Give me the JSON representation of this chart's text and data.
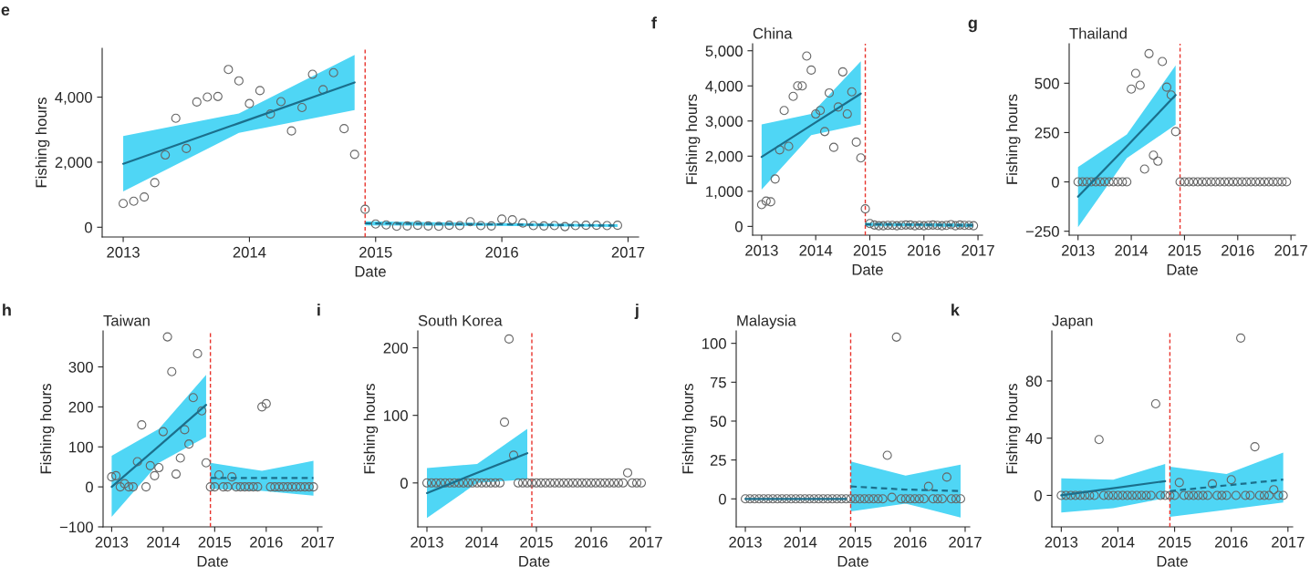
{
  "chart_data": [
    {
      "type": "scatter",
      "annotations": [
        "e"
      ],
      "xlabel": "Date",
      "ylabel": "Fishing hours",
      "x": [
        "2013-01",
        "2013-02",
        "2013-03",
        "2013-04",
        "2013-05",
        "2013-06",
        "2013-07",
        "2013-08",
        "2013-09",
        "2013-10",
        "2013-11",
        "2013-12",
        "2014-01",
        "2014-02",
        "2014-03",
        "2014-04",
        "2014-05",
        "2014-06",
        "2014-07",
        "2014-08",
        "2014-09",
        "2014-10",
        "2014-11",
        "2014-12",
        "2015-01",
        "2015-02",
        "2015-03",
        "2015-04",
        "2015-05",
        "2015-06",
        "2015-07",
        "2015-08",
        "2015-09",
        "2015-10",
        "2015-11",
        "2015-12",
        "2016-01",
        "2016-02",
        "2016-03",
        "2016-04",
        "2016-05",
        "2016-06",
        "2016-07",
        "2016-08",
        "2016-09",
        "2016-10",
        "2016-11",
        "2016-12"
      ],
      "xlim": [
        "2012-11",
        "2017-02"
      ],
      "xticks": [
        "2013",
        "2014",
        "2015",
        "2016",
        "2017"
      ],
      "ylim": [
        -300,
        5500
      ],
      "yticks": [
        0,
        {
          "value": 2000,
          "label": "2,000"
        },
        {
          "value": 4000,
          "label": "4,000"
        }
      ],
      "ref_lines": [
        {
          "axis": "x",
          "value": "2014-12",
          "color": "#e8322b",
          "line_style": "dashed"
        }
      ],
      "series": [
        {
          "marker": "circle",
          "color": "#666666",
          "values": [
            730,
            800,
            930,
            1370,
            2220,
            3350,
            2420,
            3850,
            4000,
            4020,
            4850,
            4500,
            3800,
            4200,
            3480,
            3860,
            2960,
            3680,
            4700,
            4230,
            4750,
            3030,
            2240,
            550,
            100,
            70,
            30,
            40,
            60,
            40,
            30,
            60,
            50,
            170,
            50,
            40,
            250,
            230,
            130,
            50,
            40,
            50,
            20,
            50,
            60,
            60,
            50,
            60
          ]
        },
        {
          "type": "line",
          "color": "#1b6f8c",
          "line_style": "solid",
          "x": [
            "2013-01",
            "2013-12",
            "2014-11"
          ],
          "values": [
            1950,
            3200,
            4450
          ],
          "lower": [
            1100,
            2900,
            3600
          ],
          "upper": [
            2800,
            3500,
            5300
          ]
        },
        {
          "type": "line",
          "color": "#1b6f8c",
          "line_style": "dashed",
          "x": [
            "2014-12",
            "2015-12",
            "2016-12"
          ],
          "values": [
            120,
            90,
            50
          ],
          "lower": [
            60,
            40,
            10
          ],
          "upper": [
            180,
            130,
            90
          ]
        }
      ]
    },
    {
      "type": "scatter",
      "title": "China",
      "annotations": [
        "f"
      ],
      "xlabel": "Date",
      "ylabel": "Fishing hours",
      "x": [
        "2013-01",
        "2013-02",
        "2013-03",
        "2013-04",
        "2013-05",
        "2013-06",
        "2013-07",
        "2013-08",
        "2013-09",
        "2013-10",
        "2013-11",
        "2013-12",
        "2014-01",
        "2014-02",
        "2014-03",
        "2014-04",
        "2014-05",
        "2014-06",
        "2014-07",
        "2014-08",
        "2014-09",
        "2014-10",
        "2014-11",
        "2014-12",
        "2015-01",
        "2015-02",
        "2015-03",
        "2015-04",
        "2015-05",
        "2015-06",
        "2015-07",
        "2015-08",
        "2015-09",
        "2015-10",
        "2015-11",
        "2015-12",
        "2016-01",
        "2016-02",
        "2016-03",
        "2016-04",
        "2016-05",
        "2016-06",
        "2016-07",
        "2016-08",
        "2016-09",
        "2016-10",
        "2016-11",
        "2016-12"
      ],
      "xlim": [
        "2012-11",
        "2017-02"
      ],
      "xticks": [
        "2013",
        "2014",
        "2015",
        "2016",
        "2017"
      ],
      "ylim": [
        -250,
        5200
      ],
      "yticks": [
        0,
        {
          "value": 1000,
          "label": "1,000"
        },
        {
          "value": 2000,
          "label": "2,000"
        },
        {
          "value": 3000,
          "label": "3,000"
        },
        {
          "value": 4000,
          "label": "4,000"
        },
        {
          "value": 5000,
          "label": "5,000"
        }
      ],
      "ref_lines": [
        {
          "axis": "x",
          "value": "2014-12",
          "color": "#e8322b",
          "line_style": "dashed"
        }
      ],
      "series": [
        {
          "marker": "circle",
          "color": "#666666",
          "values": [
            620,
            720,
            700,
            1350,
            2180,
            3300,
            2280,
            3700,
            4000,
            4000,
            4850,
            4450,
            3200,
            3300,
            2700,
            3800,
            2250,
            3400,
            4400,
            3200,
            3830,
            2400,
            1950,
            500,
            80,
            40,
            20,
            20,
            30,
            30,
            20,
            30,
            40,
            40,
            20,
            30,
            20,
            30,
            40,
            30,
            20,
            30,
            50,
            20,
            40,
            30,
            30,
            20
          ]
        },
        {
          "type": "line",
          "color": "#1b6f8c",
          "line_style": "solid",
          "x": [
            "2013-01",
            "2013-12",
            "2014-11"
          ],
          "values": [
            1980,
            2880,
            3780
          ],
          "lower": [
            1050,
            2600,
            2900
          ],
          "upper": [
            2900,
            3200,
            4700
          ]
        },
        {
          "type": "line",
          "color": "#1b6f8c",
          "line_style": "dashed",
          "x": [
            "2014-12",
            "2015-12",
            "2016-12"
          ],
          "values": [
            60,
            50,
            30
          ],
          "lower": [
            0,
            0,
            -20
          ],
          "upper": [
            110,
            90,
            80
          ]
        }
      ]
    },
    {
      "type": "scatter",
      "title": "Thailand",
      "annotations": [
        "g"
      ],
      "xlabel": "Date",
      "ylabel": "Fishing hours",
      "x": [
        "2013-01",
        "2013-02",
        "2013-03",
        "2013-04",
        "2013-05",
        "2013-06",
        "2013-07",
        "2013-08",
        "2013-09",
        "2013-10",
        "2013-11",
        "2013-12",
        "2014-01",
        "2014-02",
        "2014-03",
        "2014-04",
        "2014-05",
        "2014-06",
        "2014-07",
        "2014-08",
        "2014-09",
        "2014-10",
        "2014-11",
        "2014-12",
        "2015-01",
        "2015-02",
        "2015-03",
        "2015-04",
        "2015-05",
        "2015-06",
        "2015-07",
        "2015-08",
        "2015-09",
        "2015-10",
        "2015-11",
        "2015-12",
        "2016-01",
        "2016-02",
        "2016-03",
        "2016-04",
        "2016-05",
        "2016-06",
        "2016-07",
        "2016-08",
        "2016-09",
        "2016-10",
        "2016-11",
        "2016-12"
      ],
      "xlim": [
        "2012-11",
        "2017-02"
      ],
      "xticks": [
        "2013",
        "2014",
        "2015",
        "2016",
        "2017"
      ],
      "ylim": [
        -270,
        700
      ],
      "yticks": [
        {
          "value": -250,
          "label": "−250"
        },
        0,
        250,
        500
      ],
      "ref_lines": [
        {
          "axis": "x",
          "value": "2014-12",
          "color": "#e8322b",
          "line_style": "dashed"
        }
      ],
      "series": [
        {
          "marker": "circle",
          "color": "#666666",
          "values": [
            0,
            0,
            0,
            0,
            0,
            0,
            0,
            0,
            0,
            0,
            0,
            0,
            470,
            550,
            490,
            65,
            650,
            135,
            105,
            610,
            480,
            440,
            255,
            0,
            0,
            0,
            0,
            0,
            0,
            0,
            0,
            0,
            0,
            0,
            0,
            0,
            0,
            0,
            0,
            0,
            0,
            0,
            0,
            0,
            0,
            0,
            0,
            0
          ]
        },
        {
          "type": "line",
          "color": "#1b6f8c",
          "line_style": "solid",
          "x": [
            "2013-01",
            "2013-12",
            "2014-11"
          ],
          "values": [
            -75,
            180,
            440
          ],
          "lower": [
            -230,
            120,
            290
          ],
          "upper": [
            75,
            240,
            590
          ]
        }
      ]
    },
    {
      "type": "scatter",
      "title": "Taiwan",
      "annotations": [
        "h"
      ],
      "xlabel": "Date",
      "ylabel": "Fishing hours",
      "x": [
        "2013-01",
        "2013-02",
        "2013-03",
        "2013-04",
        "2013-05",
        "2013-06",
        "2013-07",
        "2013-08",
        "2013-09",
        "2013-10",
        "2013-11",
        "2013-12",
        "2014-01",
        "2014-02",
        "2014-03",
        "2014-04",
        "2014-05",
        "2014-06",
        "2014-07",
        "2014-08",
        "2014-09",
        "2014-10",
        "2014-11",
        "2014-12",
        "2015-01",
        "2015-02",
        "2015-03",
        "2015-04",
        "2015-05",
        "2015-06",
        "2015-07",
        "2015-08",
        "2015-09",
        "2015-10",
        "2015-11",
        "2015-12",
        "2016-01",
        "2016-02",
        "2016-03",
        "2016-04",
        "2016-05",
        "2016-06",
        "2016-07",
        "2016-08",
        "2016-09",
        "2016-10",
        "2016-11",
        "2016-12"
      ],
      "xlim": [
        "2012-11",
        "2017-02"
      ],
      "xticks": [
        "2013",
        "2014",
        "2015",
        "2016",
        "2017"
      ],
      "ylim": [
        -100,
        390
      ],
      "yticks": [
        {
          "value": -100,
          "label": "−100"
        },
        0,
        100,
        200,
        300
      ],
      "ref_lines": [
        {
          "axis": "x",
          "value": "2014-12",
          "color": "#e8322b",
          "line_style": "dashed"
        }
      ],
      "series": [
        {
          "marker": "circle",
          "color": "#666666",
          "values": [
            25,
            28,
            0,
            8,
            0,
            0,
            63,
            155,
            0,
            53,
            28,
            48,
            138,
            375,
            288,
            32,
            72,
            143,
            107,
            223,
            333,
            190,
            60,
            0,
            0,
            30,
            0,
            0,
            25,
            0,
            0,
            0,
            0,
            0,
            0,
            200,
            208,
            0,
            0,
            0,
            0,
            0,
            0,
            0,
            0,
            0,
            0,
            0
          ]
        },
        {
          "type": "line",
          "color": "#1b6f8c",
          "line_style": "solid",
          "x": [
            "2013-01",
            "2013-12",
            "2014-11"
          ],
          "values": [
            0,
            102,
            205
          ],
          "lower": [
            -75,
            60,
            125
          ],
          "upper": [
            78,
            145,
            280
          ]
        },
        {
          "type": "line",
          "color": "#1b6f8c",
          "line_style": "dashed",
          "x": [
            "2014-12",
            "2015-12",
            "2016-12"
          ],
          "values": [
            22,
            22,
            22
          ],
          "lower": [
            -5,
            -10,
            -22
          ],
          "upper": [
            60,
            40,
            65
          ]
        }
      ]
    },
    {
      "type": "scatter",
      "title": "South Korea",
      "annotations": [
        "i"
      ],
      "xlabel": "Date",
      "ylabel": "Fishing hours",
      "x": [
        "2013-01",
        "2013-02",
        "2013-03",
        "2013-04",
        "2013-05",
        "2013-06",
        "2013-07",
        "2013-08",
        "2013-09",
        "2013-10",
        "2013-11",
        "2013-12",
        "2014-01",
        "2014-02",
        "2014-03",
        "2014-04",
        "2014-05",
        "2014-06",
        "2014-07",
        "2014-08",
        "2014-09",
        "2014-10",
        "2014-11",
        "2014-12",
        "2015-01",
        "2015-02",
        "2015-03",
        "2015-04",
        "2015-05",
        "2015-06",
        "2015-07",
        "2015-08",
        "2015-09",
        "2015-10",
        "2015-11",
        "2015-12",
        "2016-01",
        "2016-02",
        "2016-03",
        "2016-04",
        "2016-05",
        "2016-06",
        "2016-07",
        "2016-08",
        "2016-09",
        "2016-10",
        "2016-11",
        "2016-12"
      ],
      "xlim": [
        "2012-11",
        "2017-02"
      ],
      "xticks": [
        "2013",
        "2014",
        "2015",
        "2016",
        "2017"
      ],
      "ylim": [
        -65,
        225
      ],
      "yticks": [
        0,
        100,
        200
      ],
      "ref_lines": [
        {
          "axis": "x",
          "value": "2014-12",
          "color": "#e8322b",
          "line_style": "dashed"
        }
      ],
      "series": [
        {
          "marker": "circle",
          "color": "#666666",
          "values": [
            0,
            0,
            0,
            0,
            0,
            0,
            0,
            0,
            0,
            0,
            0,
            0,
            0,
            0,
            0,
            0,
            0,
            90,
            213,
            41,
            0,
            0,
            0,
            0,
            0,
            0,
            0,
            0,
            0,
            0,
            0,
            0,
            0,
            0,
            0,
            0,
            0,
            0,
            0,
            0,
            0,
            0,
            0,
            0,
            15,
            0,
            0,
            0
          ]
        },
        {
          "type": "line",
          "color": "#1b6f8c",
          "line_style": "solid",
          "x": [
            "2013-01",
            "2013-12",
            "2014-11"
          ],
          "values": [
            -15,
            15,
            44
          ],
          "lower": [
            -52,
            0,
            5
          ],
          "upper": [
            22,
            28,
            80
          ]
        }
      ]
    },
    {
      "type": "scatter",
      "title": "Malaysia",
      "annotations": [
        "j"
      ],
      "xlabel": "Date",
      "ylabel": "Fishing hours",
      "x": [
        "2013-01",
        "2013-02",
        "2013-03",
        "2013-04",
        "2013-05",
        "2013-06",
        "2013-07",
        "2013-08",
        "2013-09",
        "2013-10",
        "2013-11",
        "2013-12",
        "2014-01",
        "2014-02",
        "2014-03",
        "2014-04",
        "2014-05",
        "2014-06",
        "2014-07",
        "2014-08",
        "2014-09",
        "2014-10",
        "2014-11",
        "2014-12",
        "2015-01",
        "2015-02",
        "2015-03",
        "2015-04",
        "2015-05",
        "2015-06",
        "2015-07",
        "2015-08",
        "2015-09",
        "2015-10",
        "2015-11",
        "2015-12",
        "2016-01",
        "2016-02",
        "2016-03",
        "2016-04",
        "2016-05",
        "2016-06",
        "2016-07",
        "2016-08",
        "2016-09",
        "2016-10",
        "2016-11",
        "2016-12"
      ],
      "xlim": [
        "2012-11",
        "2017-02"
      ],
      "xticks": [
        "2013",
        "2014",
        "2015",
        "2016",
        "2017"
      ],
      "ylim": [
        -18,
        108
      ],
      "yticks": [
        0,
        25,
        50,
        75,
        100
      ],
      "ref_lines": [
        {
          "axis": "x",
          "value": "2014-12",
          "color": "#e8322b",
          "line_style": "dashed"
        }
      ],
      "series": [
        {
          "marker": "circle",
          "color": "#666666",
          "values": [
            0,
            0,
            0,
            0,
            0,
            0,
            0,
            0,
            0,
            0,
            0,
            0,
            0,
            0,
            0,
            0,
            0,
            0,
            0,
            0,
            0,
            0,
            0,
            0,
            0,
            0,
            0,
            0,
            0,
            0,
            0,
            28,
            1,
            104,
            0,
            0,
            0,
            0,
            0,
            0,
            8,
            0,
            0,
            0,
            14,
            0,
            0,
            0
          ]
        },
        {
          "type": "line",
          "color": "#1b6f8c",
          "line_style": "solid",
          "x": [
            "2013-01",
            "2014-11"
          ],
          "values": [
            0,
            0
          ]
        },
        {
          "type": "line",
          "color": "#1b6f8c",
          "line_style": "dashed",
          "x": [
            "2014-12",
            "2015-12",
            "2016-12"
          ],
          "values": [
            8,
            6,
            5
          ],
          "lower": [
            -8,
            -3,
            -12
          ],
          "upper": [
            24,
            15,
            22
          ]
        }
      ]
    },
    {
      "type": "scatter",
      "title": "Japan",
      "annotations": [
        "k"
      ],
      "xlabel": "Date",
      "ylabel": "Fishing hours",
      "x": [
        "2013-01",
        "2013-02",
        "2013-03",
        "2013-04",
        "2013-05",
        "2013-06",
        "2013-07",
        "2013-08",
        "2013-09",
        "2013-10",
        "2013-11",
        "2013-12",
        "2014-01",
        "2014-02",
        "2014-03",
        "2014-04",
        "2014-05",
        "2014-06",
        "2014-07",
        "2014-08",
        "2014-09",
        "2014-10",
        "2014-11",
        "2014-12",
        "2015-01",
        "2015-02",
        "2015-03",
        "2015-04",
        "2015-05",
        "2015-06",
        "2015-07",
        "2015-08",
        "2015-09",
        "2015-10",
        "2015-11",
        "2015-12",
        "2016-01",
        "2016-02",
        "2016-03",
        "2016-04",
        "2016-05",
        "2016-06",
        "2016-07",
        "2016-08",
        "2016-09",
        "2016-10",
        "2016-11",
        "2016-12"
      ],
      "xlim": [
        "2012-11",
        "2017-02"
      ],
      "xticks": [
        "2013",
        "2014",
        "2015",
        "2016",
        "2017"
      ],
      "ylim": [
        -22,
        115
      ],
      "yticks": [
        0,
        40,
        80
      ],
      "ref_lines": [
        {
          "axis": "x",
          "value": "2014-12",
          "color": "#e8322b",
          "line_style": "dashed"
        }
      ],
      "series": [
        {
          "marker": "circle",
          "color": "#666666",
          "values": [
            0,
            0,
            0,
            0,
            0,
            0,
            0,
            0,
            39,
            0,
            0,
            0,
            0,
            0,
            0,
            0,
            0,
            0,
            0,
            0,
            64,
            0,
            0,
            0,
            0,
            9,
            0,
            0,
            0,
            0,
            0,
            0,
            8,
            0,
            0,
            0,
            11,
            0,
            110,
            0,
            0,
            34,
            0,
            0,
            0,
            4,
            0,
            0
          ]
        },
        {
          "type": "line",
          "color": "#1b6f8c",
          "line_style": "solid",
          "x": [
            "2013-01",
            "2013-12",
            "2014-11"
          ],
          "values": [
            0,
            5,
            10
          ],
          "lower": [
            -12,
            -9,
            -2
          ],
          "upper": [
            12,
            11,
            22
          ]
        },
        {
          "type": "line",
          "color": "#1b6f8c",
          "line_style": "dashed",
          "x": [
            "2014-12",
            "2015-12",
            "2016-12"
          ],
          "values": [
            3,
            7,
            11
          ],
          "lower": [
            -15,
            -10,
            -5
          ],
          "upper": [
            20,
            15,
            30
          ]
        }
      ]
    }
  ]
}
